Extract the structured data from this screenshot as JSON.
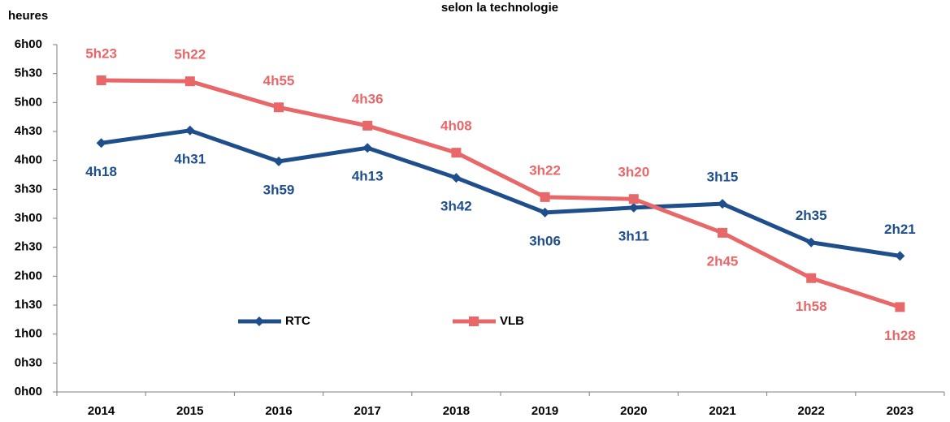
{
  "chart_data": {
    "type": "line",
    "title": "selon la technologie",
    "y_label": "heures",
    "categories": [
      "2014",
      "2015",
      "2016",
      "2017",
      "2018",
      "2019",
      "2020",
      "2021",
      "2022",
      "2023"
    ],
    "series": [
      {
        "name": "RTC",
        "color": "#1f4e8c",
        "marker": "diamond",
        "values": [
          258,
          271,
          239,
          253,
          222,
          186,
          191,
          195,
          155,
          141
        ],
        "value_labels": [
          "4h18",
          "4h31",
          "3h59",
          "4h13",
          "3h42",
          "3h06",
          "3h11",
          "3h15",
          "2h35",
          "2h21"
        ]
      },
      {
        "name": "VLB",
        "color": "#e8686a",
        "marker": "square",
        "values": [
          323,
          322,
          295,
          276,
          248,
          202,
          200,
          165,
          118,
          88
        ],
        "value_labels": [
          "5h23",
          "5h22",
          "4h55",
          "4h36",
          "4h08",
          "3h22",
          "3h20",
          "2h45",
          "1h58",
          "1h28"
        ]
      }
    ],
    "ylim": [
      0,
      360
    ],
    "yticks": [
      {
        "value": 0,
        "label": "0h00"
      },
      {
        "value": 30,
        "label": "0h30"
      },
      {
        "value": 60,
        "label": "1h00"
      },
      {
        "value": 90,
        "label": "1h30"
      },
      {
        "value": 120,
        "label": "2h00"
      },
      {
        "value": 150,
        "label": "2h30"
      },
      {
        "value": 180,
        "label": "3h00"
      },
      {
        "value": 210,
        "label": "3h30"
      },
      {
        "value": 240,
        "label": "4h00"
      },
      {
        "value": 270,
        "label": "4h30"
      },
      {
        "value": 300,
        "label": "5h00"
      },
      {
        "value": 330,
        "label": "5h30"
      },
      {
        "value": 360,
        "label": "6h00"
      }
    ],
    "grid": false
  }
}
